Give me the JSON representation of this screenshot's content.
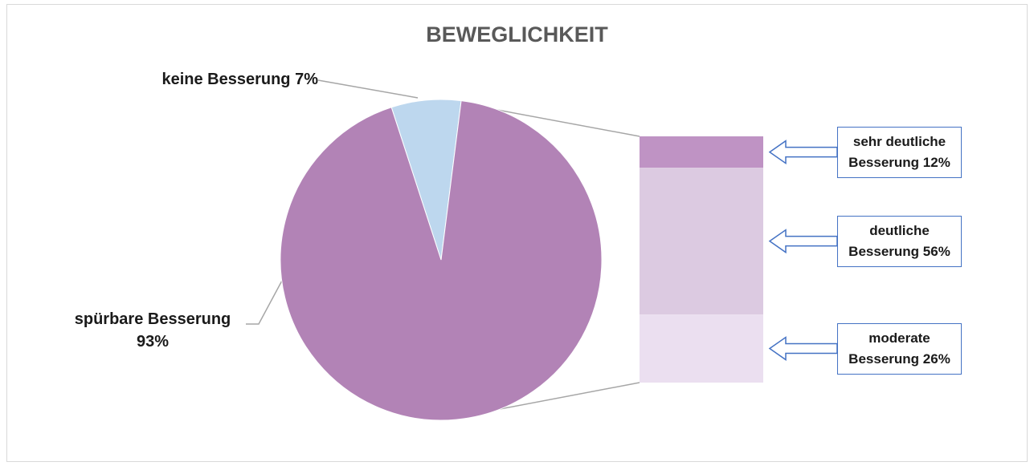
{
  "chart_data": {
    "type": "pie",
    "title": "BEWEGLICHKEIT",
    "pie": {
      "categories": [
        "keine Besserung",
        "spürbare Besserung"
      ],
      "values": [
        7,
        93
      ],
      "value_labels": [
        "7%",
        "93%"
      ],
      "colors": [
        "#bdd7ee",
        "#b283b6"
      ]
    },
    "bar": {
      "categories": [
        "sehr deutliche Besserung",
        "deutliche Besserung",
        "moderate Besserung"
      ],
      "values": [
        12,
        56,
        26
      ],
      "value_labels": [
        "12%",
        "56%",
        "26%"
      ],
      "colors": [
        "#bf93c4",
        "#dccae1",
        "#ebdff0"
      ]
    }
  }
}
